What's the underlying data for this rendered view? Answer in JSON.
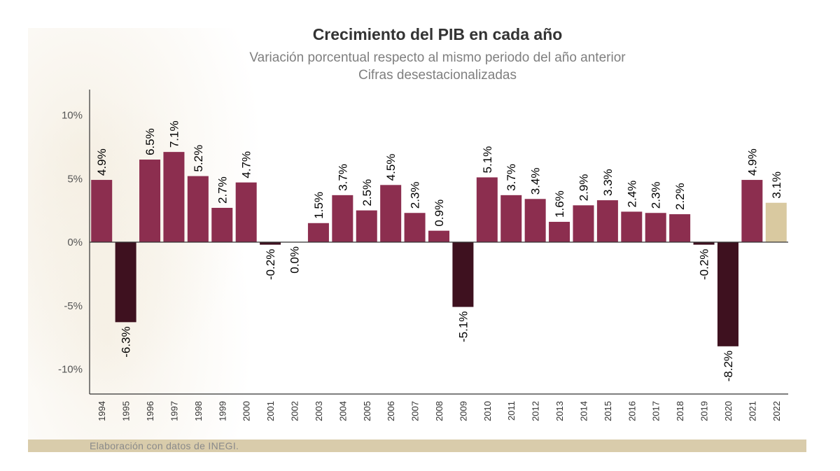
{
  "title": "Crecimiento del PIB en cada año",
  "subtitle_line1": "Variación porcentual respecto al mismo periodo del año anterior",
  "subtitle_line2": "Cifras desestacionalizadas",
  "footer": "Elaboración con datos de INEGI.",
  "colors": {
    "positive": "#8c2e4f",
    "negative": "#3e111f",
    "estimate": "#d9c9a0",
    "axis": "#333333",
    "text": "#000000"
  },
  "chart_data": {
    "type": "bar",
    "title": "Crecimiento del PIB en cada año",
    "xlabel": "",
    "ylabel": "",
    "ylim": [
      -12,
      12
    ],
    "yticks": [
      10,
      5,
      0,
      -5,
      -10
    ],
    "ytick_labels": [
      "10%",
      "5%",
      "0%",
      "-5%",
      "-10%"
    ],
    "categories": [
      "1994",
      "1995",
      "1996",
      "1997",
      "1998",
      "1999",
      "2000",
      "2001",
      "2002",
      "2003",
      "2004",
      "2005",
      "2006",
      "2007",
      "2008",
      "2009",
      "2010",
      "2011",
      "2012",
      "2013",
      "2014",
      "2015",
      "2016",
      "2017",
      "2018",
      "2019",
      "2020",
      "2021",
      "2022"
    ],
    "values": [
      4.9,
      -6.3,
      6.5,
      7.1,
      5.2,
      2.7,
      4.7,
      -0.2,
      0.0,
      1.5,
      3.7,
      2.5,
      4.5,
      2.3,
      0.9,
      -5.1,
      5.1,
      3.7,
      3.4,
      1.6,
      2.9,
      3.3,
      2.4,
      2.3,
      2.2,
      -0.2,
      -8.2,
      4.9,
      3.1
    ],
    "labels": [
      "4.9%",
      "-6.3%",
      "6.5%",
      "7.1%",
      "5.2%",
      "2.7%",
      "4.7%",
      "-0.2%",
      "0.0%",
      "1.5%",
      "3.7%",
      "2.5%",
      "4.5%",
      "2.3%",
      "0.9%",
      "-5.1%",
      "5.1%",
      "3.7%",
      "3.4%",
      "1.6%",
      "2.9%",
      "3.3%",
      "2.4%",
      "2.3%",
      "2.2%",
      "-0.2%",
      "-8.2%",
      "4.9%",
      "3.1%"
    ],
    "highlight_last": true
  }
}
